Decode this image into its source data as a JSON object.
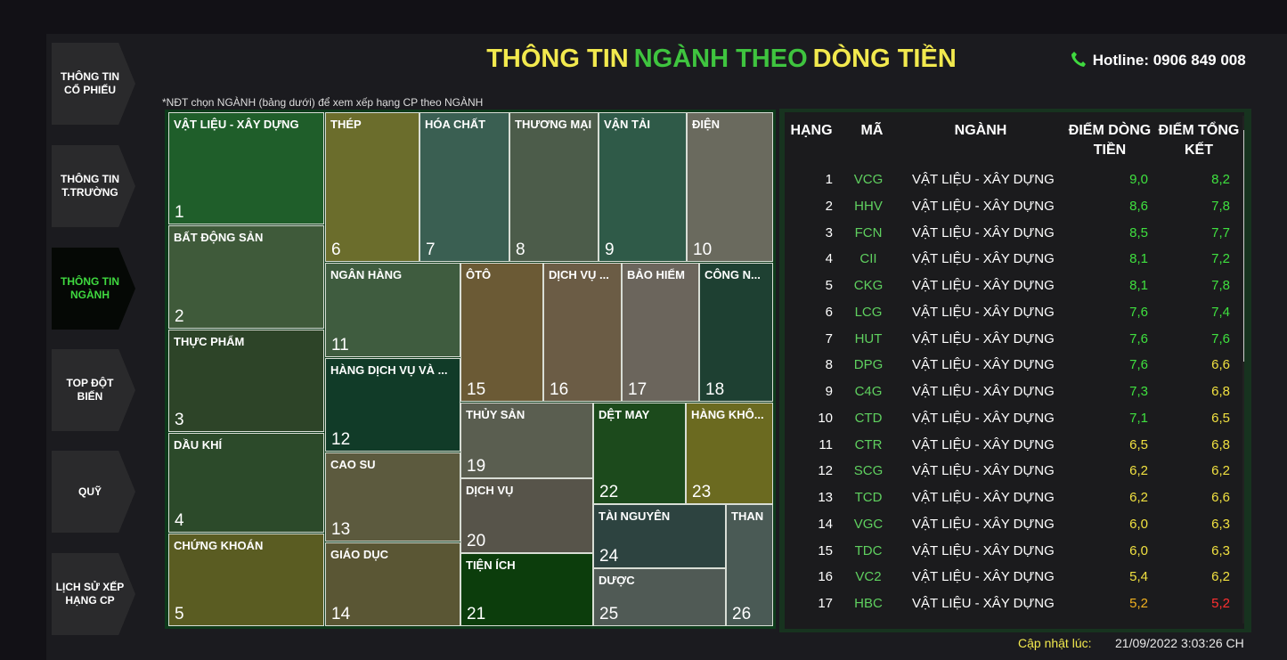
{
  "header": {
    "title": [
      {
        "text": "THÔNG TIN",
        "color": "#f2e94e"
      },
      {
        "text": "NGÀNH THEO",
        "color": "#3fc43f"
      },
      {
        "text": "DÒNG TIỀN",
        "color": "#f2e94e"
      }
    ],
    "title_tail": {
      "text": "",
      "color": ""
    },
    "hotline": "Hotline: 0906 849 008"
  },
  "nav": [
    {
      "label": "THÔNG TIN CỔ PHIẾU",
      "active": false
    },
    {
      "label": "THÔNG TIN T.TRƯỜNG",
      "active": false
    },
    {
      "label": "THÔNG TIN NGÀNH",
      "active": true
    },
    {
      "label": "TOP ĐỘT BIẾN",
      "active": false
    },
    {
      "label": "QUỸ",
      "active": false
    },
    {
      "label": "LỊCH SỬ XẾP HẠNG CP",
      "active": false
    }
  ],
  "note": "*NĐT chọn NGÀNH (bảng dưới) để xem xếp hạng CP theo NGÀNH",
  "treemap": {
    "tiles": [
      {
        "label": "VẬT LIỆU - XÂY DỰNG",
        "rank": "1"
      },
      {
        "label": "BẤT ĐỘNG SẢN",
        "rank": "2"
      },
      {
        "label": "THỰC PHẨM",
        "rank": "3"
      },
      {
        "label": "DẦU KHÍ",
        "rank": "4"
      },
      {
        "label": "CHỨNG KHOÁN",
        "rank": "5"
      },
      {
        "label": "THÉP",
        "rank": "6"
      },
      {
        "label": "HÓA CHẤT",
        "rank": "7"
      },
      {
        "label": "THƯƠNG MẠI",
        "rank": "8"
      },
      {
        "label": "VẬN TẢI",
        "rank": "9"
      },
      {
        "label": "ĐIỆN",
        "rank": "10"
      },
      {
        "label": "NGÂN HÀNG",
        "rank": "11"
      },
      {
        "label": "HÀNG DỊCH VỤ VÀ ...",
        "rank": "12"
      },
      {
        "label": "CAO SU",
        "rank": "13"
      },
      {
        "label": "GIÁO DỤC",
        "rank": "14"
      },
      {
        "label": "ÔTÔ",
        "rank": "15"
      },
      {
        "label": "DỊCH VỤ ...",
        "rank": "16"
      },
      {
        "label": "BẢO HIỂM",
        "rank": "17"
      },
      {
        "label": "CÔNG N...",
        "rank": "18"
      },
      {
        "label": "THỦY SẢN",
        "rank": "19"
      },
      {
        "label": "DỊCH VỤ",
        "rank": "20"
      },
      {
        "label": "TIỆN ÍCH",
        "rank": "21"
      },
      {
        "label": "DỆT MAY",
        "rank": "22"
      },
      {
        "label": "HÀNG KHÔ...",
        "rank": "23"
      },
      {
        "label": "TÀI NGUYÊN",
        "rank": "24"
      },
      {
        "label": "DƯỢC",
        "rank": "25"
      },
      {
        "label": "THAN",
        "rank": "26"
      }
    ]
  },
  "table": {
    "headers": [
      "HẠNG",
      "MÃ",
      "NGÀNH",
      "ĐIỂM DÒNG TIỀN",
      "ĐIỂM TỔNG KẾT"
    ],
    "rows": [
      [
        "1",
        "VCG",
        "VẬT LIỆU - XÂY DỰNG",
        "9,0",
        "8,2"
      ],
      [
        "2",
        "HHV",
        "VẬT LIỆU - XÂY DỰNG",
        "8,6",
        "7,8"
      ],
      [
        "3",
        "FCN",
        "VẬT LIỆU - XÂY DỰNG",
        "8,5",
        "7,7"
      ],
      [
        "4",
        "CII",
        "VẬT LIỆU - XÂY DỰNG",
        "8,1",
        "7,2"
      ],
      [
        "5",
        "CKG",
        "VẬT LIỆU - XÂY DỰNG",
        "8,1",
        "7,8"
      ],
      [
        "6",
        "LCG",
        "VẬT LIỆU - XÂY DỰNG",
        "7,6",
        "7,4"
      ],
      [
        "7",
        "HUT",
        "VẬT LIỆU - XÂY DỰNG",
        "7,6",
        "7,6"
      ],
      [
        "8",
        "DPG",
        "VẬT LIỆU - XÂY DỰNG",
        "7,6",
        "6,6"
      ],
      [
        "9",
        "C4G",
        "VẬT LIỆU - XÂY DỰNG",
        "7,3",
        "6,8"
      ],
      [
        "10",
        "CTD",
        "VẬT LIỆU - XÂY DỰNG",
        "7,1",
        "6,5"
      ],
      [
        "11",
        "CTR",
        "VẬT LIỆU - XÂY DỰNG",
        "6,5",
        "6,8"
      ],
      [
        "12",
        "SCG",
        "VẬT LIỆU - XÂY DỰNG",
        "6,2",
        "6,2"
      ],
      [
        "13",
        "TCD",
        "VẬT LIỆU - XÂY DỰNG",
        "6,2",
        "6,6"
      ],
      [
        "14",
        "VGC",
        "VẬT LIỆU - XÂY DỰNG",
        "6,0",
        "6,3"
      ],
      [
        "15",
        "TDC",
        "VẬT LIỆU - XÂY DỰNG",
        "6,0",
        "6,3"
      ],
      [
        "16",
        "VC2",
        "VẬT LIỆU - XÂY DỰNG",
        "5,4",
        "6,2"
      ],
      [
        "17",
        "HBC",
        "VẬT LIỆU - XÂY DỰNG",
        "5,2",
        "5,2"
      ]
    ]
  },
  "footer": {
    "label": "Cập nhật lúc:",
    "timestamp": "21/09/2022 3:03:26 CH"
  }
}
